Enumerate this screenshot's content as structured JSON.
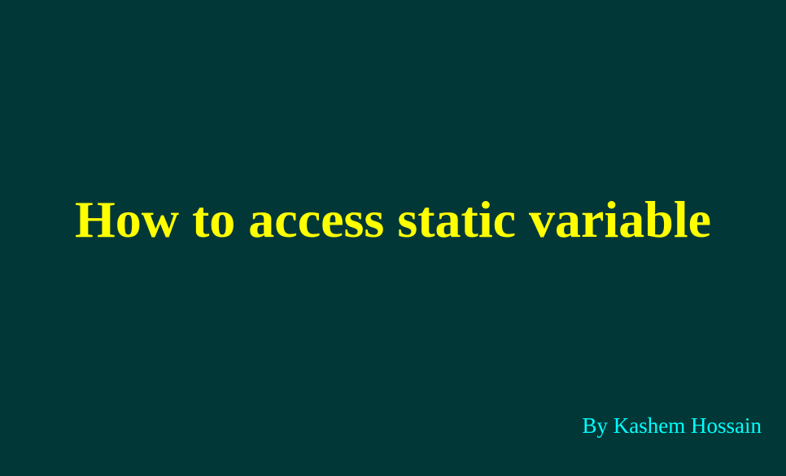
{
  "slide": {
    "title": "How to access static variable",
    "author": "By Kashem Hossain"
  },
  "colors": {
    "background": "#013837",
    "title": "#ffff00",
    "author": "#00ffff"
  }
}
